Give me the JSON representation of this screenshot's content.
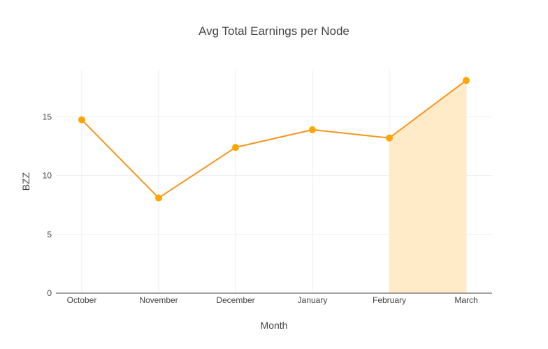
{
  "chart_data": {
    "type": "line",
    "title": "Avg Total Earnings per Node",
    "xlabel": "Month",
    "ylabel": "BZZ",
    "categories": [
      "October",
      "November",
      "December",
      "January",
      "February",
      "March"
    ],
    "series": [
      {
        "values": [
          14.75,
          8.1,
          12.4,
          13.9,
          13.2,
          18.1
        ]
      }
    ],
    "highlight_range": [
      "February",
      "March"
    ],
    "ylim": [
      0,
      19
    ],
    "yticks": [
      0,
      5,
      10,
      15
    ],
    "grid": true,
    "colors": {
      "line": "#f7941d",
      "marker": "#ffa500",
      "fill": "#ffebc8",
      "grid": "#eeeeee",
      "axis": "#444444"
    }
  }
}
